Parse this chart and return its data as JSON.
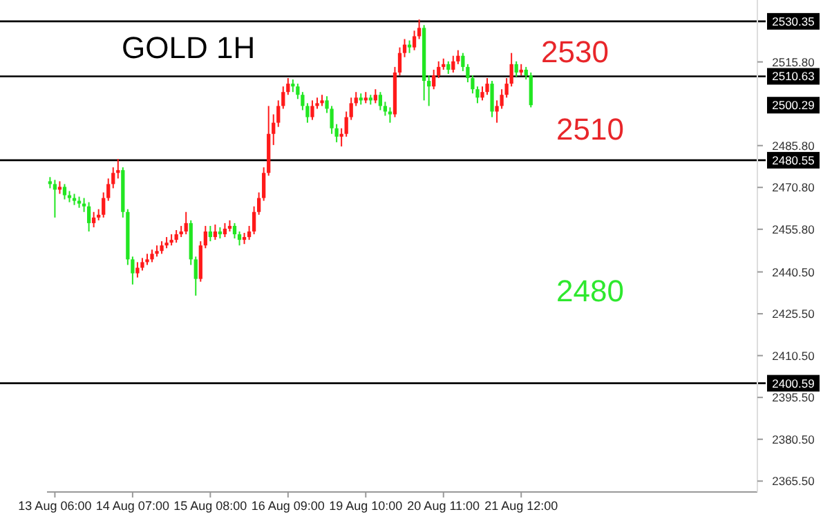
{
  "chart_data": {
    "type": "candlestick",
    "title": "GOLD 1H",
    "categories": [
      null,
      "13 Aug 06:00",
      null,
      null,
      null,
      null,
      null,
      null,
      null,
      null,
      null,
      null,
      null,
      null,
      null,
      null,
      null,
      "14 Aug 07:00",
      null,
      null,
      null,
      null,
      null,
      null,
      null,
      null,
      null,
      null,
      null,
      null,
      null,
      null,
      null,
      "15 Aug 08:00",
      null,
      null,
      null,
      null,
      null,
      null,
      null,
      null,
      null,
      null,
      null,
      null,
      null,
      null,
      null,
      "16 Aug 09:00",
      null,
      null,
      null,
      null,
      null,
      null,
      null,
      null,
      null,
      null,
      null,
      null,
      null,
      null,
      null,
      "19 Aug 10:00",
      null,
      null,
      null,
      null,
      null,
      null,
      null,
      null,
      null,
      null,
      null,
      null,
      null,
      null,
      null,
      "20 Aug 11:00",
      null,
      null,
      null,
      null,
      null,
      null,
      null,
      null,
      null,
      null,
      null,
      null,
      null,
      null,
      null,
      "21 Aug 12:00",
      null,
      null,
      null,
      null,
      null,
      null,
      null,
      null,
      null,
      null,
      null,
      null,
      null,
      null,
      null,
      null,
      null,
      null,
      null,
      null,
      null,
      null,
      null,
      null,
      null,
      null,
      null,
      null,
      null,
      null,
      null,
      null,
      null,
      null,
      null,
      null,
      null,
      null,
      null,
      null,
      null,
      null,
      null,
      null,
      null,
      null,
      null,
      null
    ],
    "ohlc": [
      [
        2473,
        2474.5,
        2470.5,
        2472
      ],
      [
        2472,
        2473.5,
        2460,
        2470
      ],
      [
        2470,
        2473,
        2468.5,
        2471
      ],
      [
        2471,
        2472,
        2466.5,
        2468
      ],
      [
        2468,
        2469.5,
        2465.5,
        2467
      ],
      [
        2467,
        2468.5,
        2464.5,
        2466
      ],
      [
        2466,
        2467.5,
        2463.5,
        2465
      ],
      [
        2465,
        2467,
        2462,
        2464
      ],
      [
        2464,
        2465.5,
        2455,
        2458
      ],
      [
        2458,
        2462,
        2456.5,
        2460
      ],
      [
        2460,
        2463,
        2459,
        2461
      ],
      [
        2461,
        2469,
        2460,
        2467
      ],
      [
        2467,
        2474,
        2466,
        2472
      ],
      [
        2472,
        2478,
        2470.5,
        2476
      ],
      [
        2476,
        2481,
        2474,
        2477
      ],
      [
        2477,
        2478,
        2460,
        2462
      ],
      [
        2462,
        2463,
        2443,
        2445
      ],
      [
        2445,
        2446,
        2436,
        2440
      ],
      [
        2440,
        2444,
        2438.5,
        2442
      ],
      [
        2442,
        2445.5,
        2441,
        2444
      ],
      [
        2444,
        2447,
        2443,
        2445
      ],
      [
        2445,
        2448.5,
        2444,
        2447
      ],
      [
        2447,
        2450,
        2446,
        2448
      ],
      [
        2448,
        2451.5,
        2447,
        2450
      ],
      [
        2450,
        2453,
        2449,
        2451
      ],
      [
        2451,
        2454,
        2450,
        2452
      ],
      [
        2452,
        2455.5,
        2451,
        2454
      ],
      [
        2454,
        2457,
        2453,
        2455
      ],
      [
        2455,
        2462,
        2454,
        2458
      ],
      [
        2458,
        2459,
        2443,
        2445
      ],
      [
        2445,
        2446,
        2432,
        2438
      ],
      [
        2438,
        2451.5,
        2437,
        2450
      ],
      [
        2450,
        2457,
        2449,
        2455
      ],
      [
        2455,
        2457,
        2451.5,
        2453
      ],
      [
        2453,
        2457.5,
        2452,
        2455
      ],
      [
        2455,
        2456.5,
        2452.5,
        2454
      ],
      [
        2454,
        2458,
        2453,
        2456
      ],
      [
        2456,
        2459,
        2455,
        2457
      ],
      [
        2457,
        2458,
        2452.5,
        2454
      ],
      [
        2454,
        2455,
        2450,
        2452
      ],
      [
        2452,
        2454.5,
        2450.5,
        2453
      ],
      [
        2453,
        2457,
        2452,
        2455
      ],
      [
        2455,
        2464,
        2454,
        2462
      ],
      [
        2462,
        2469,
        2461,
        2467
      ],
      [
        2467,
        2478,
        2466,
        2476
      ],
      [
        2476,
        2500,
        2475,
        2490
      ],
      [
        2490,
        2497,
        2486,
        2494
      ],
      [
        2494,
        2502,
        2492.5,
        2500
      ],
      [
        2500,
        2507,
        2499,
        2505
      ],
      [
        2505,
        2510,
        2504,
        2508
      ],
      [
        2508,
        2509.5,
        2505,
        2507
      ],
      [
        2507,
        2508,
        2502.5,
        2504
      ],
      [
        2504,
        2505,
        2498.5,
        2500
      ],
      [
        2500,
        2501,
        2494,
        2496
      ],
      [
        2496,
        2502,
        2495,
        2500
      ],
      [
        2500,
        2503,
        2499,
        2501
      ],
      [
        2501,
        2504,
        2500,
        2502
      ],
      [
        2502,
        2503.5,
        2497.5,
        2499
      ],
      [
        2499,
        2500,
        2490,
        2492
      ],
      [
        2492,
        2493.5,
        2487,
        2489
      ],
      [
        2489,
        2492,
        2485.5,
        2490
      ],
      [
        2490,
        2498,
        2489,
        2496
      ],
      [
        2496,
        2503,
        2495,
        2501
      ],
      [
        2501,
        2505,
        2500,
        2503
      ],
      [
        2503,
        2504.5,
        2500.5,
        2502
      ],
      [
        2502,
        2505,
        2501,
        2503
      ],
      [
        2503,
        2504,
        2500.5,
        2502
      ],
      [
        2502,
        2506,
        2501,
        2504
      ],
      [
        2504,
        2505,
        2498.5,
        2500
      ],
      [
        2500,
        2501.5,
        2496.5,
        2498
      ],
      [
        2498,
        2499.5,
        2494,
        2497
      ],
      [
        2497,
        2514,
        2496,
        2512
      ],
      [
        2512,
        2521,
        2511,
        2519
      ],
      [
        2519,
        2524,
        2517.5,
        2522
      ],
      [
        2522,
        2523.5,
        2519,
        2521
      ],
      [
        2521,
        2527,
        2520,
        2525
      ],
      [
        2525,
        2531,
        2524,
        2528
      ],
      [
        2528,
        2529,
        2502,
        2509
      ],
      [
        2509,
        2511,
        2500,
        2507
      ],
      [
        2507,
        2513,
        2506,
        2511
      ],
      [
        2511,
        2516,
        2510,
        2514
      ],
      [
        2514,
        2517,
        2513,
        2515
      ],
      [
        2515,
        2516,
        2511.5,
        2513
      ],
      [
        2513,
        2518,
        2512,
        2516
      ],
      [
        2516,
        2520,
        2515,
        2518
      ],
      [
        2518,
        2519,
        2512.5,
        2514
      ],
      [
        2514,
        2515,
        2508.5,
        2510
      ],
      [
        2510,
        2511,
        2504.5,
        2506
      ],
      [
        2506,
        2507,
        2501,
        2503
      ],
      [
        2503,
        2507,
        2502,
        2505
      ],
      [
        2505,
        2510,
        2504,
        2508
      ],
      [
        2508,
        2509,
        2496,
        2498
      ],
      [
        2498,
        2502,
        2494,
        2500
      ],
      [
        2500,
        2506,
        2499,
        2504
      ],
      [
        2504,
        2510,
        2503,
        2508
      ],
      [
        2508,
        2519,
        2507,
        2515
      ],
      [
        2515,
        2516,
        2510.5,
        2512
      ],
      [
        2512,
        2515,
        2511,
        2513
      ],
      [
        2513,
        2514,
        2509.5,
        2511
      ],
      [
        2511,
        2512,
        2499.5,
        2500.29
      ],
      null,
      null,
      null,
      null,
      null,
      null,
      null,
      null,
      null,
      null,
      null,
      null,
      null,
      null,
      null,
      null,
      null,
      null,
      null,
      null,
      null,
      null,
      null,
      null,
      null,
      null,
      null,
      null,
      null,
      null,
      null,
      null,
      null,
      null,
      null,
      null,
      null,
      null,
      null,
      null,
      null,
      null,
      null,
      null,
      null,
      null
    ],
    "colors": [
      "#22e622",
      "#22e622",
      "#ff1a1a",
      "#22e622",
      "#22e622",
      "#22e622",
      "#22e622",
      "#22e622",
      "#22e622",
      "#ff1a1a",
      "#ff1a1a",
      "#ff1a1a",
      "#ff1a1a",
      "#ff1a1a",
      "#ff1a1a",
      "#22e622",
      "#22e622",
      "#22e622",
      "#ff1a1a",
      "#ff1a1a",
      "#ff1a1a",
      "#ff1a1a",
      "#ff1a1a",
      "#ff1a1a",
      "#ff1a1a",
      "#ff1a1a",
      "#ff1a1a",
      "#ff1a1a",
      "#ff1a1a",
      "#22e622",
      "#22e622",
      "#ff1a1a",
      "#ff1a1a",
      "#22e622",
      "#ff1a1a",
      "#22e622",
      "#ff1a1a",
      "#ff1a1a",
      "#22e622",
      "#22e622",
      "#ff1a1a",
      "#ff1a1a",
      "#ff1a1a",
      "#ff1a1a",
      "#ff1a1a",
      "#ff1a1a",
      "#ff1a1a",
      "#ff1a1a",
      "#ff1a1a",
      "#ff1a1a",
      "#22e622",
      "#22e622",
      "#22e622",
      "#22e622",
      "#ff1a1a",
      "#ff1a1a",
      "#ff1a1a",
      "#22e622",
      "#22e622",
      "#22e622",
      "#ff1a1a",
      "#ff1a1a",
      "#ff1a1a",
      "#ff1a1a",
      "#22e622",
      "#ff1a1a",
      "#22e622",
      "#ff1a1a",
      "#22e622",
      "#22e622",
      "#22e622",
      "#ff1a1a",
      "#ff1a1a",
      "#ff1a1a",
      "#22e622",
      "#ff1a1a",
      "#ff1a1a",
      "#22e622",
      "#22e622",
      "#ff1a1a",
      "#ff1a1a",
      "#ff1a1a",
      "#22e622",
      "#ff1a1a",
      "#ff1a1a",
      "#22e622",
      "#22e622",
      "#22e622",
      "#22e622",
      "#ff1a1a",
      "#ff1a1a",
      "#22e622",
      "#ff1a1a",
      "#ff1a1a",
      "#ff1a1a",
      "#ff1a1a",
      "#22e622",
      "#ff1a1a",
      "#22e622",
      "#22e622",
      null,
      null,
      null,
      null,
      null,
      null,
      null,
      null,
      null,
      null,
      null,
      null,
      null,
      null,
      null,
      null,
      null,
      null,
      null,
      null,
      null,
      null,
      null,
      null,
      null,
      null,
      null,
      null,
      null,
      null,
      null,
      null,
      null,
      null,
      null,
      null,
      null,
      null,
      null,
      null,
      null,
      null,
      null,
      null,
      null,
      null
    ],
    "ylim": [
      2361.6,
      2538
    ],
    "yticks": [
      {
        "value": 2515.8,
        "label": "2515.80"
      },
      {
        "value": 2485.8,
        "label": "2485.80"
      },
      {
        "value": 2470.8,
        "label": "2470.80"
      },
      {
        "value": 2455.8,
        "label": "2455.80"
      },
      {
        "value": 2440.5,
        "label": "2440.50"
      },
      {
        "value": 2425.5,
        "label": "2425.50"
      },
      {
        "value": 2410.5,
        "label": "2410.50"
      },
      {
        "value": 2395.5,
        "label": "2395.50"
      },
      {
        "value": 2380.5,
        "label": "2380.50"
      },
      {
        "value": 2365.5,
        "label": "2365.50"
      }
    ],
    "ref_lines": [
      {
        "axis": "y",
        "value": 2530.35,
        "label": "2530.35",
        "color": "#000000"
      },
      {
        "axis": "y",
        "value": 2510.63,
        "label": "2510.63",
        "color": "#000000"
      },
      {
        "axis": "y",
        "value": 2480.55,
        "label": "2480.55",
        "color": "#000000"
      },
      {
        "axis": "y",
        "value": 2400.59,
        "label": "2400.59",
        "color": "#000000"
      }
    ],
    "annotations": [
      "2530",
      "2510",
      "2480",
      "2500.29"
    ]
  }
}
